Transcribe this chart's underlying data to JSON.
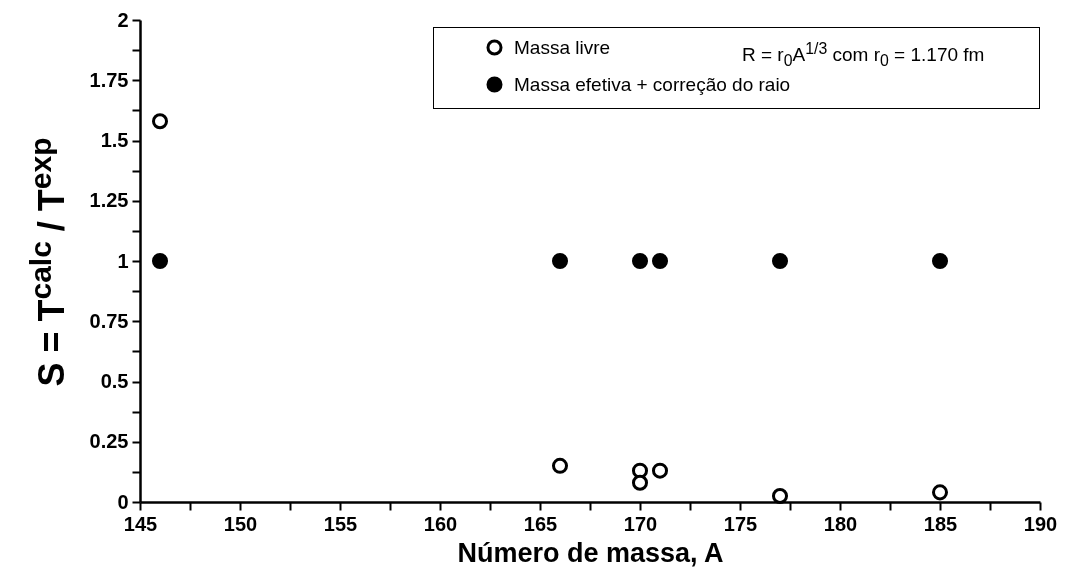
{
  "chart_data": {
    "type": "scatter",
    "xlabel": "Número de massa, A",
    "ylabel": "S = T$^{calc}$ / T$^{exp}$",
    "annotations": [
      "R = r$_{0}$A$^{1/3}$ com r$_{0}$ = 1.170 fm"
    ],
    "series": [
      {
        "name": "Massa livre",
        "color": "#000000",
        "x": [
          146,
          166,
          170,
          170,
          171,
          177,
          185
        ],
        "values": [
          1.58,
          0.15,
          0.13,
          0.08,
          0.13,
          0.025,
          0.04
        ]
      },
      {
        "name": "Massa efetiva + correção do raio",
        "color": "#000000",
        "x": [
          146,
          166,
          170,
          171,
          177,
          185
        ],
        "values": [
          1,
          1,
          1,
          1,
          1,
          1
        ]
      }
    ],
    "xlim": [
      145,
      190
    ],
    "xticks": [
      145,
      {
        "value": 147.5,
        "label": null
      },
      150,
      {
        "value": 152.5,
        "label": null
      },
      155,
      {
        "value": 157.5,
        "label": null
      },
      160,
      {
        "value": 162.5,
        "label": null
      },
      165,
      {
        "value": 167.5,
        "label": null
      },
      170,
      {
        "value": 172.5,
        "label": null
      },
      175,
      {
        "value": 177.5,
        "label": null
      },
      180,
      {
        "value": 182.5,
        "label": null
      },
      185,
      {
        "value": 187.5,
        "label": null
      },
      190
    ],
    "ylim": [
      0,
      2
    ],
    "yticks": [
      0,
      {
        "value": 0.125,
        "label": null
      },
      0.25,
      {
        "value": 0.375,
        "label": null
      },
      0.5,
      {
        "value": 0.625,
        "label": null
      },
      0.75,
      {
        "value": 0.875,
        "label": null
      },
      1,
      {
        "value": 1.125,
        "label": null
      },
      1.25,
      {
        "value": 1.375,
        "label": null
      },
      1.5,
      {
        "value": 1.625,
        "label": null
      },
      1.75,
      {
        "value": 1.875,
        "label": null
      },
      2
    ],
    "marker": "circle",
    "legend": "top right",
    "grid": false
  }
}
